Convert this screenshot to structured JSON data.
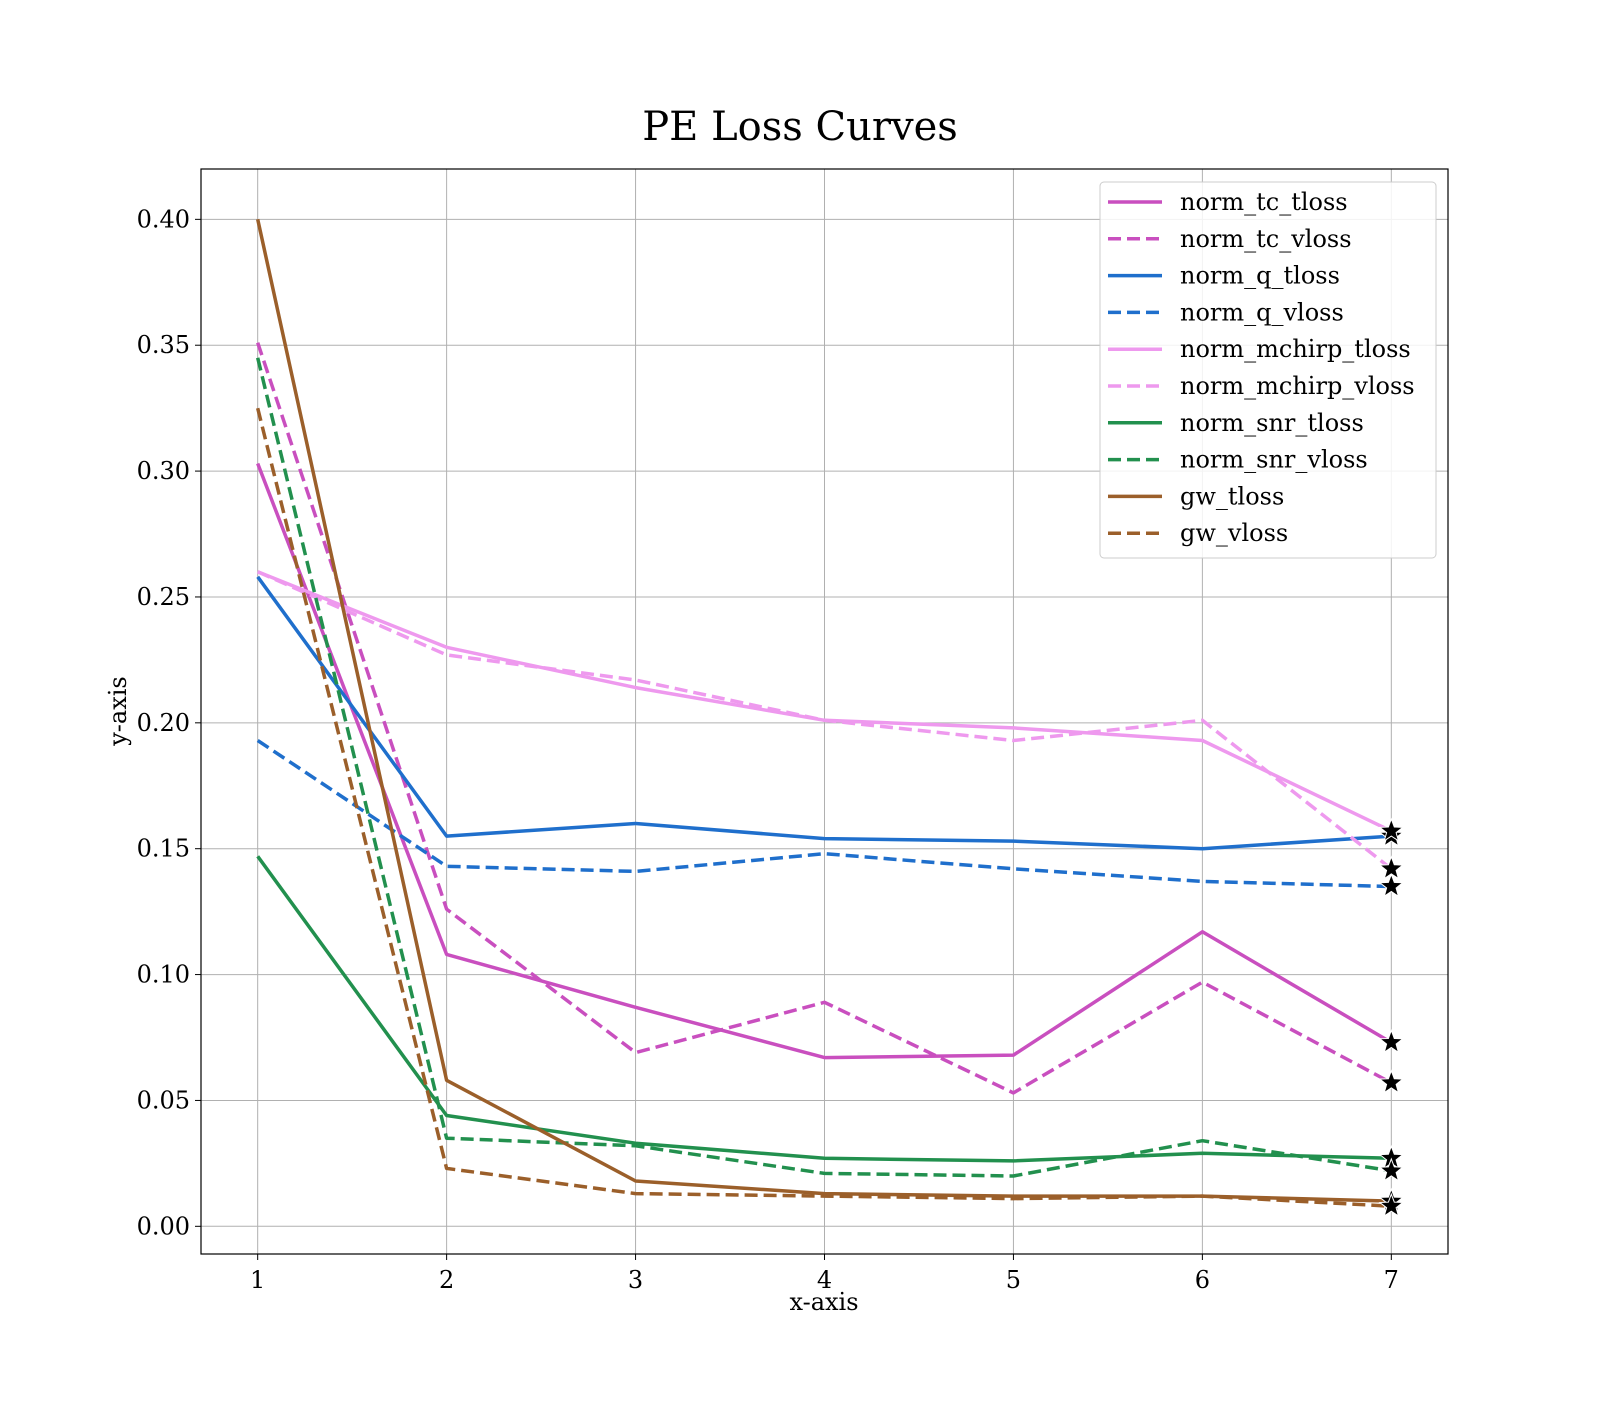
{
  "chart_data": {
    "type": "line",
    "title": "PE Loss Curves",
    "xlabel": "x-axis",
    "ylabel": "y-axis",
    "x": [
      1,
      2,
      3,
      4,
      5,
      6,
      7
    ],
    "xlim": [
      0.7,
      7.3
    ],
    "ylim": [
      -0.011,
      0.42
    ],
    "xticks": [
      "1",
      "2",
      "3",
      "4",
      "5",
      "6",
      "7"
    ],
    "yticks": [
      "0.00",
      "0.05",
      "0.10",
      "0.15",
      "0.20",
      "0.25",
      "0.30",
      "0.35",
      "0.40"
    ],
    "grid": true,
    "legend_position": "upper right",
    "final_point_marker": "star",
    "series": [
      {
        "name": "norm_tc_tloss",
        "color": "#c94fbf",
        "style": "solid",
        "values": [
          0.303,
          0.108,
          0.087,
          0.067,
          0.068,
          0.117,
          0.073
        ]
      },
      {
        "name": "norm_tc_vloss",
        "color": "#c94fbf",
        "style": "dashed",
        "values": [
          0.351,
          0.126,
          0.069,
          0.089,
          0.053,
          0.097,
          0.057
        ]
      },
      {
        "name": "norm_q_tloss",
        "color": "#1f6fcc",
        "style": "solid",
        "values": [
          0.258,
          0.155,
          0.16,
          0.154,
          0.153,
          0.15,
          0.155
        ]
      },
      {
        "name": "norm_q_vloss",
        "color": "#1f6fcc",
        "style": "dashed",
        "values": [
          0.193,
          0.143,
          0.141,
          0.148,
          0.142,
          0.137,
          0.135
        ]
      },
      {
        "name": "norm_mchirp_tloss",
        "color": "#ee99ee",
        "style": "solid",
        "values": [
          0.26,
          0.23,
          0.214,
          0.201,
          0.198,
          0.193,
          0.157
        ]
      },
      {
        "name": "norm_mchirp_vloss",
        "color": "#ee99ee",
        "style": "dashed",
        "values": [
          0.26,
          0.227,
          0.217,
          0.201,
          0.193,
          0.201,
          0.142
        ]
      },
      {
        "name": "norm_snr_tloss",
        "color": "#22904e",
        "style": "solid",
        "values": [
          0.147,
          0.044,
          0.033,
          0.027,
          0.026,
          0.029,
          0.027
        ]
      },
      {
        "name": "norm_snr_vloss",
        "color": "#22904e",
        "style": "dashed",
        "values": [
          0.345,
          0.035,
          0.032,
          0.021,
          0.02,
          0.034,
          0.022
        ]
      },
      {
        "name": "gw_tloss",
        "color": "#9b5f2a",
        "style": "solid",
        "values": [
          0.4,
          0.058,
          0.018,
          0.013,
          0.012,
          0.012,
          0.01
        ]
      },
      {
        "name": "gw_vloss",
        "color": "#9b5f2a",
        "style": "dashed",
        "values": [
          0.325,
          0.023,
          0.013,
          0.012,
          0.011,
          0.012,
          0.008
        ]
      }
    ]
  }
}
